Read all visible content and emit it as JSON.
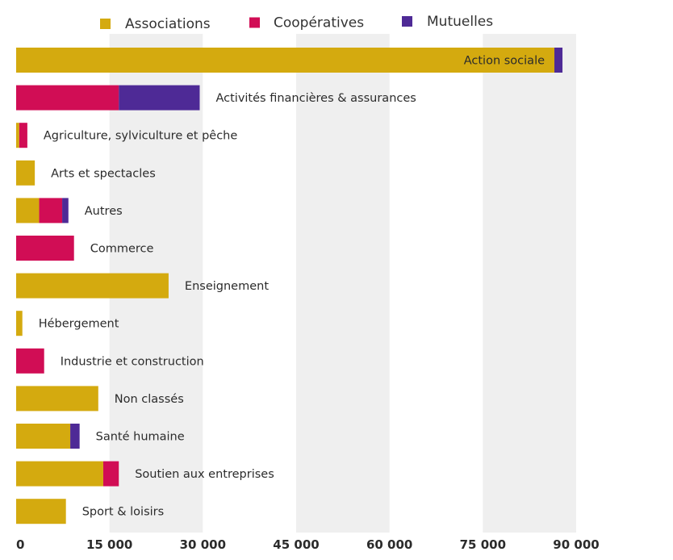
{
  "chart_data": {
    "type": "bar",
    "orientation": "horizontal",
    "stacked": true,
    "categories": [
      "Action sociale",
      "Activités financières & assurances",
      "Agriculture, sylviculture et pêche",
      "Arts et spectacles",
      "Autres",
      "Commerce",
      "Enseignement",
      "Hébergement",
      "Industrie et construction",
      "Non classés",
      "Santé humaine",
      "Soutien aux entreprises",
      "Sport & loisirs"
    ],
    "series": [
      {
        "name": "Associations",
        "color": "#d4aa0f",
        "values": [
          86500,
          0,
          500,
          3000,
          3700,
          0,
          24500,
          1000,
          0,
          13200,
          8700,
          14000,
          8000
        ]
      },
      {
        "name": "Coopératives",
        "color": "#d10d55",
        "values": [
          0,
          16500,
          1300,
          0,
          3700,
          9300,
          0,
          0,
          4500,
          0,
          0,
          2500,
          0
        ]
      },
      {
        "name": "Mutuelles",
        "color": "#4e2a96",
        "values": [
          1300,
          13000,
          0,
          0,
          1000,
          0,
          0,
          0,
          0,
          0,
          1500,
          0,
          0
        ]
      }
    ],
    "xticks": [
      "0",
      "15 000",
      "30 000",
      "45 000",
      "60 000",
      "75 000",
      "90 000"
    ],
    "xlim": [
      0,
      90000
    ],
    "legend_position": "top",
    "grid": "alternating vertical bands"
  }
}
